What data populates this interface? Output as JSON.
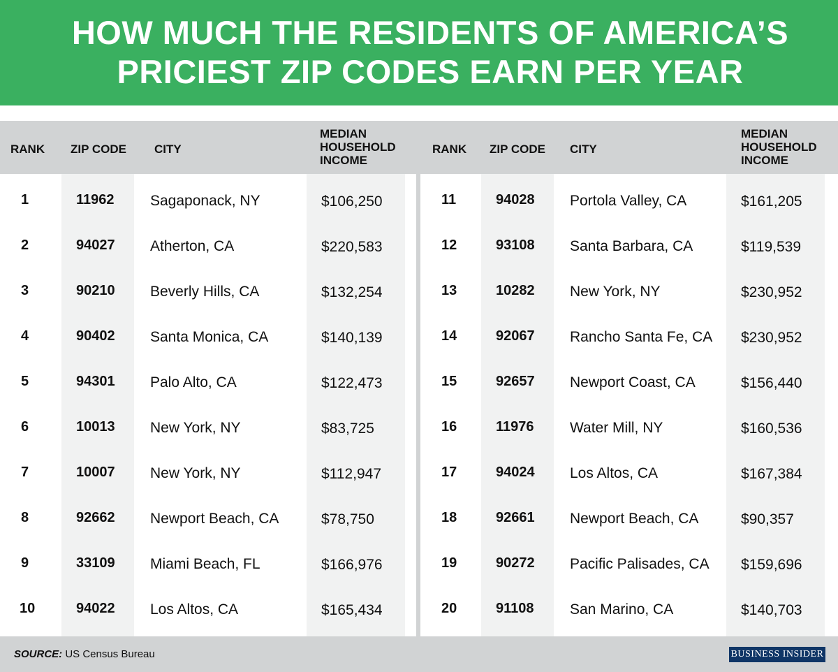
{
  "title": {
    "line1": "HOW MUCH THE RESIDENTS OF AMERICA’S",
    "line2": "PRICIEST ZIP CODES EARN PER YEAR"
  },
  "headers": {
    "rank": "RANK",
    "zip": "ZIP CODE",
    "city": "CITY",
    "income_l1": "MEDIAN",
    "income_l2": "HOUSEHOLD",
    "income_l3": "INCOME"
  },
  "rows_left": [
    {
      "rank": "1",
      "zip": "11962",
      "city": "Sagaponack, NY",
      "income": "$106,250"
    },
    {
      "rank": "2",
      "zip": "94027",
      "city": "Atherton, CA",
      "income": "$220,583"
    },
    {
      "rank": "3",
      "zip": "90210",
      "city": "Beverly Hills, CA",
      "income": "$132,254"
    },
    {
      "rank": "4",
      "zip": "90402",
      "city": "Santa Monica, CA",
      "income": "$140,139"
    },
    {
      "rank": "5",
      "zip": "94301",
      "city": "Palo Alto, CA",
      "income": "$122,473"
    },
    {
      "rank": "6",
      "zip": "10013",
      "city": "New York, NY",
      "income": "$83,725"
    },
    {
      "rank": "7",
      "zip": "10007",
      "city": "New York, NY",
      "income": "$112,947"
    },
    {
      "rank": "8",
      "zip": "92662",
      "city": "Newport Beach, CA",
      "income": "$78,750"
    },
    {
      "rank": "9",
      "zip": "33109",
      "city": "Miami Beach, FL",
      "income": "$166,976"
    },
    {
      "rank": "10",
      "zip": "94022",
      "city": "Los Altos, CA",
      "income": "$165,434"
    }
  ],
  "rows_right": [
    {
      "rank": "11",
      "zip": "94028",
      "city": "Portola Valley, CA",
      "income": "$161,205"
    },
    {
      "rank": "12",
      "zip": "93108",
      "city": "Santa Barbara, CA",
      "income": "$119,539"
    },
    {
      "rank": "13",
      "zip": "10282",
      "city": "New York, NY",
      "income": "$230,952"
    },
    {
      "rank": "14",
      "zip": "92067",
      "city": "Rancho Santa Fe, CA",
      "income": "$230,952"
    },
    {
      "rank": "15",
      "zip": "92657",
      "city": "Newport Coast, CA",
      "income": "$156,440"
    },
    {
      "rank": "16",
      "zip": "11976",
      "city": "Water Mill, NY",
      "income": "$160,536"
    },
    {
      "rank": "17",
      "zip": "94024",
      "city": "Los Altos, CA",
      "income": "$167,384"
    },
    {
      "rank": "18",
      "zip": "92661",
      "city": "Newport Beach, CA",
      "income": "$90,357"
    },
    {
      "rank": "19",
      "zip": "90272",
      "city": "Pacific Palisades, CA",
      "income": "$159,696"
    },
    {
      "rank": "20",
      "zip": "91108",
      "city": "San Marino, CA",
      "income": "$140,703"
    }
  ],
  "footer": {
    "source_label": "SOURCE:",
    "source_text": " US Census Bureau",
    "logo": "BUSINESS INSIDER"
  },
  "colors": {
    "banner": "#3ab060",
    "band": "#d1d3d4",
    "column_shade": "#f1f2f2",
    "logo_bg": "#0f3566"
  }
}
